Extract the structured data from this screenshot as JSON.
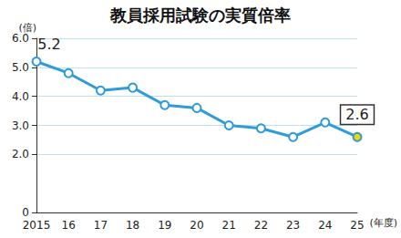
{
  "chart_data": {
    "type": "line",
    "title": "教員採用試験の実質倍率",
    "y_label": "(倍)",
    "x_label": "(年度)",
    "categories": [
      "2015",
      "16",
      "17",
      "18",
      "19",
      "20",
      "21",
      "22",
      "23",
      "24",
      "25"
    ],
    "values": [
      5.2,
      4.8,
      4.2,
      4.3,
      3.7,
      3.6,
      3.0,
      2.9,
      2.6,
      3.1,
      2.6
    ],
    "color": "#2f9bd7",
    "colors": [
      "#ffffff",
      "#ffffff",
      "#ffffff",
      "#ffffff",
      "#ffffff",
      "#ffffff",
      "#ffffff",
      "#ffffff",
      "#ffffff",
      "#ffffff",
      "#f2d600"
    ],
    "marker": "circle",
    "ylim": [
      0,
      6
    ],
    "yticks": [
      0,
      {
        "value": 2,
        "label": "2.0"
      },
      {
        "value": 3,
        "label": "3.0"
      },
      {
        "value": 4,
        "label": "4.0"
      },
      {
        "value": 5,
        "label": "5.0"
      },
      {
        "value": 6,
        "label": "6.0"
      }
    ],
    "grid": true,
    "annotations": [
      {
        "x": "2015",
        "text": "5.2"
      },
      {
        "x": "25",
        "text": "2.6"
      }
    ]
  }
}
